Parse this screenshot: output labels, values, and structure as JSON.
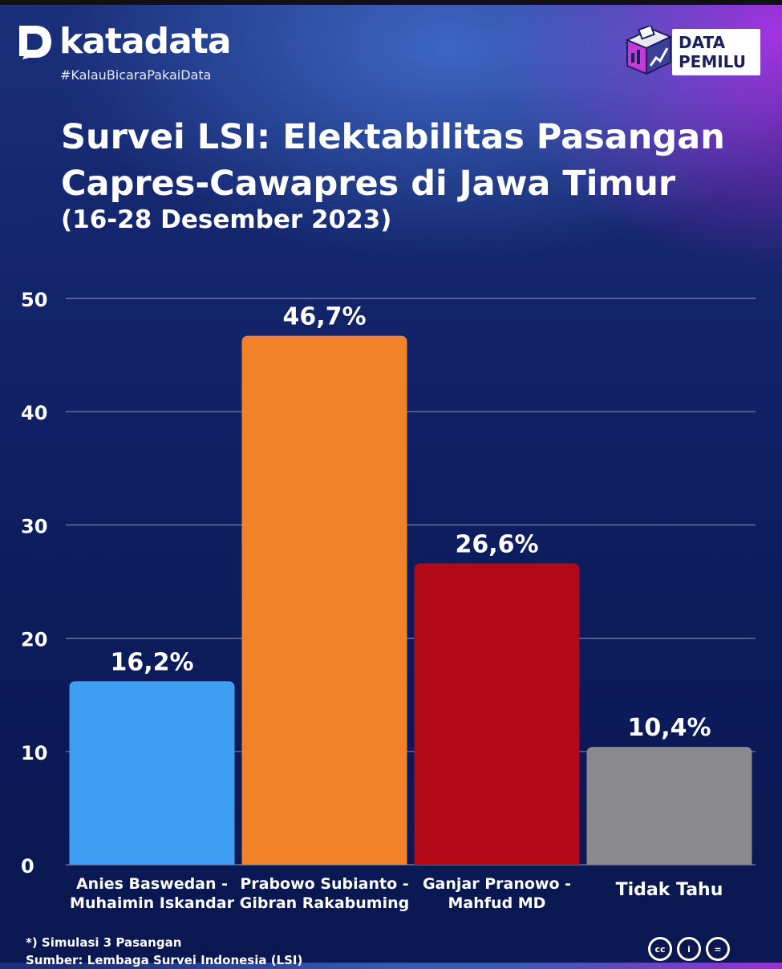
{
  "brand": {
    "name": "katadata",
    "tagline": "#KalauBicaraPakaiData",
    "badge_line1": "DATA",
    "badge_line2": "PEMILU"
  },
  "header": {
    "title": "Survei LSI: Elektabilitas Pasangan Capres-Cawapres di Jawa Timur",
    "subtitle": "(16-28 Desember 2023)"
  },
  "chart_data": {
    "type": "bar",
    "title": "Survei LSI: Elektabilitas Pasangan Capres-Cawapres di Jawa Timur",
    "subtitle": "(16-28 Desember 2023)",
    "categories": [
      [
        "Anies Baswedan -",
        "Muhaimin Iskandar"
      ],
      [
        "Prabowo Subianto -",
        "Gibran Rakabuming"
      ],
      [
        "Ganjar Pranowo -",
        "Mahfud MD"
      ],
      [
        "Tidak Tahu"
      ]
    ],
    "values": [
      16.2,
      46.7,
      26.6,
      10.4
    ],
    "value_labels": [
      "16,2%",
      "46,7%",
      "26,6%",
      "10,4%"
    ],
    "colors": [
      "#3d9ef2",
      "#f2822a",
      "#b3081a",
      "#8a8a8e"
    ],
    "yticks": [
      "0",
      "10",
      "20",
      "30",
      "40",
      "50"
    ],
    "ylim": [
      0,
      50
    ],
    "grid": true,
    "xlabel": "",
    "ylabel": ""
  },
  "footer": {
    "note": "*) Simulasi 3 Pasangan",
    "source": "Sumber: Lembaga Survei Indonesia (LSI)",
    "license_icons": [
      "cc-icon",
      "by-icon",
      "nd-icon"
    ],
    "license_labels": [
      "cc",
      "i",
      "="
    ]
  }
}
